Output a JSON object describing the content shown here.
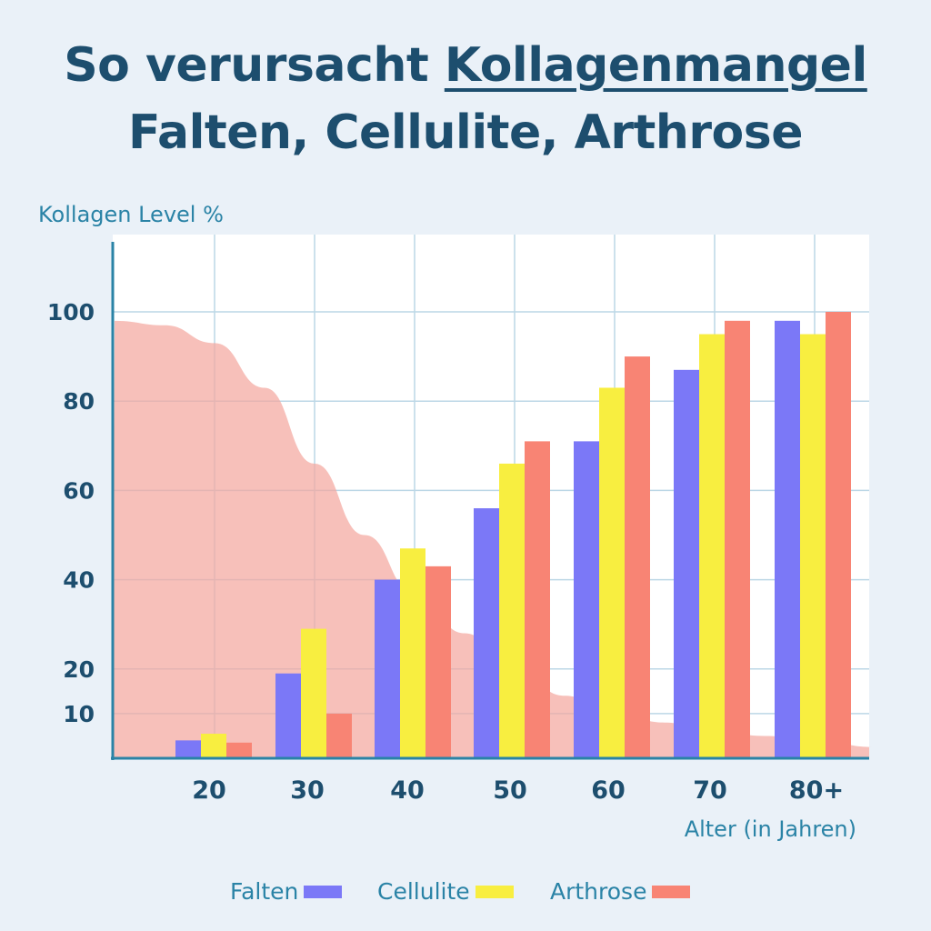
{
  "title": {
    "line1_prefix": "So verursacht ",
    "line1_underlined": "Kollagenmangel",
    "line2": "Falten, Cellulite, Arthrose"
  },
  "chart_data": {
    "type": "bar",
    "ylabel": "Kollagen Level %",
    "xlabel": "Alter (in Jahren)",
    "categories": [
      "20",
      "30",
      "40",
      "50",
      "60",
      "70",
      "80+"
    ],
    "y_ticks": [
      "10",
      "20",
      "40",
      "60",
      "80",
      "100"
    ],
    "grid": true,
    "legend_position": "bottom",
    "series": [
      {
        "name": "Falten",
        "color": "#7b78f7",
        "values": [
          4,
          19,
          40,
          56,
          71,
          87,
          98
        ]
      },
      {
        "name": "Cellulite",
        "color": "#f8ee40",
        "values": [
          5.5,
          29,
          47,
          66,
          83,
          95,
          95
        ]
      },
      {
        "name": "Arthrose",
        "color": "#f88474",
        "values": [
          3.5,
          10,
          43,
          71,
          90,
          98,
          100
        ]
      }
    ],
    "background_curve": {
      "color": "#f4a7a0",
      "values_by_age": [
        [
          10,
          98
        ],
        [
          15,
          97
        ],
        [
          20,
          93
        ],
        [
          25,
          83
        ],
        [
          30,
          66
        ],
        [
          35,
          50
        ],
        [
          40,
          37
        ],
        [
          45,
          28
        ],
        [
          50,
          20
        ],
        [
          55,
          14
        ],
        [
          60,
          10
        ],
        [
          65,
          8
        ],
        [
          70,
          6
        ],
        [
          75,
          5
        ],
        [
          80,
          4
        ],
        [
          86,
          2.5
        ]
      ]
    }
  }
}
